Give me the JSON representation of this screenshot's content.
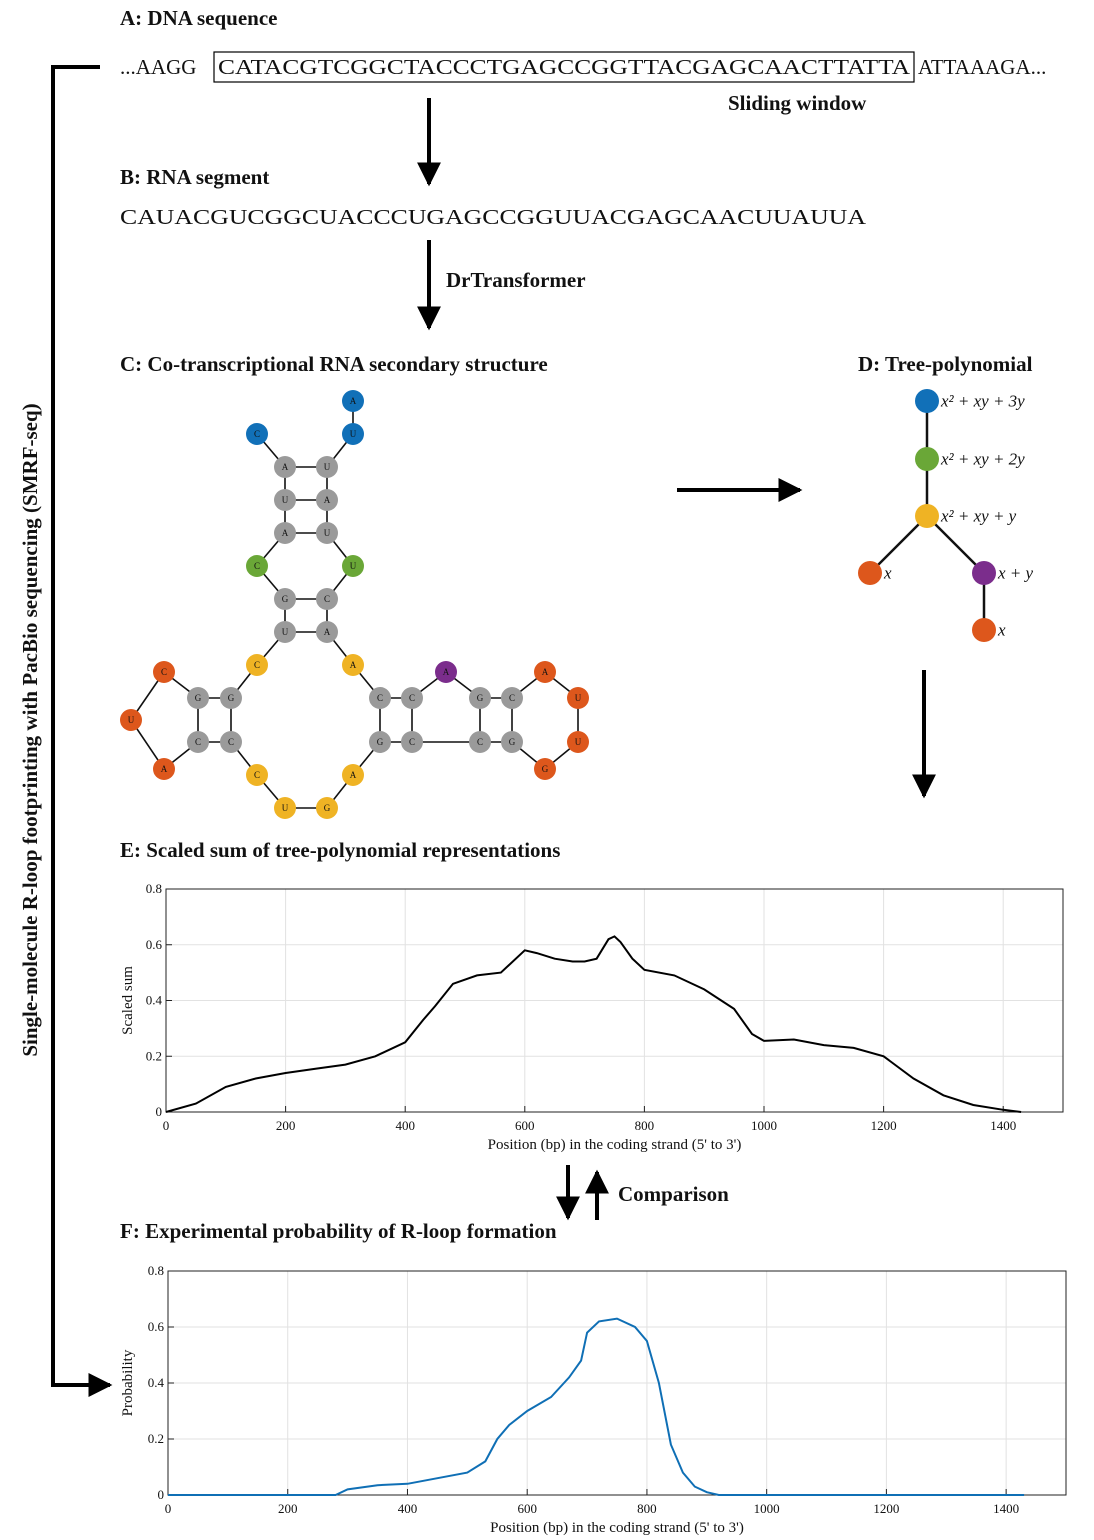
{
  "panel_a": {
    "title": "A: DNA sequence",
    "prefix": "...AAGG",
    "window": "CATACGTCGGCTACCCTGAGCCGGTTACGAGCAACTTATTA",
    "suffix": "ATTAAAGA...",
    "window_label": "Sliding window"
  },
  "panel_b": {
    "title": "B: RNA segment",
    "sequence": "CAUACGUCGGCUACCCUGAGCCGGUUACGAGCAACUUAUUA"
  },
  "tool_label": "DrTransformer",
  "panel_c": {
    "title": "C: Co-transcriptional RNA secondary structure",
    "nodes": [
      {
        "label": "C",
        "color": "#1170b8"
      },
      {
        "label": "A",
        "color": "#1170b8"
      },
      {
        "label": "U",
        "color": "#1170b8"
      },
      {
        "label": "A",
        "color": "#9a9a9a"
      },
      {
        "label": "U",
        "color": "#9a9a9a"
      },
      {
        "label": "U",
        "color": "#9a9a9a"
      },
      {
        "label": "A",
        "color": "#9a9a9a"
      },
      {
        "label": "A",
        "color": "#9a9a9a"
      },
      {
        "label": "U",
        "color": "#9a9a9a"
      },
      {
        "label": "C",
        "color": "#6aa737"
      },
      {
        "label": "U",
        "color": "#6aa737"
      },
      {
        "label": "G",
        "color": "#9a9a9a"
      },
      {
        "label": "C",
        "color": "#9a9a9a"
      },
      {
        "label": "U",
        "color": "#9a9a9a"
      },
      {
        "label": "A",
        "color": "#9a9a9a"
      },
      {
        "label": "C",
        "color": "#efb324"
      },
      {
        "label": "A",
        "color": "#efb324"
      },
      {
        "label": "G",
        "color": "#9a9a9a"
      },
      {
        "label": "G",
        "color": "#9a9a9a"
      },
      {
        "label": "C",
        "color": "#9a9a9a"
      },
      {
        "label": "C",
        "color": "#9a9a9a"
      },
      {
        "label": "C",
        "color": "#dd571c"
      },
      {
        "label": "U",
        "color": "#dd571c"
      },
      {
        "label": "A",
        "color": "#dd571c"
      },
      {
        "label": "C",
        "color": "#efb324"
      },
      {
        "label": "U",
        "color": "#efb324"
      },
      {
        "label": "G",
        "color": "#efb324"
      },
      {
        "label": "A",
        "color": "#efb324"
      },
      {
        "label": "C",
        "color": "#9a9a9a"
      },
      {
        "label": "C",
        "color": "#9a9a9a"
      },
      {
        "label": "G",
        "color": "#9a9a9a"
      },
      {
        "label": "C",
        "color": "#9a9a9a"
      },
      {
        "label": "G",
        "color": "#9a9a9a"
      },
      {
        "label": "C",
        "color": "#9a9a9a"
      },
      {
        "label": "C",
        "color": "#9a9a9a"
      },
      {
        "label": "G",
        "color": "#9a9a9a"
      },
      {
        "label": "A",
        "color": "#7b2d8c"
      },
      {
        "label": "A",
        "color": "#dd571c"
      },
      {
        "label": "U",
        "color": "#dd571c"
      },
      {
        "label": "U",
        "color": "#dd571c"
      },
      {
        "label": "G",
        "color": "#dd571c"
      }
    ]
  },
  "panel_d": {
    "title": "D: Tree-polynomial",
    "nodes": [
      {
        "label": "x² + xy + 3y",
        "color": "#1170b8"
      },
      {
        "label": "x² + xy + 2y",
        "color": "#6aa737"
      },
      {
        "label": "x² + xy + y",
        "color": "#efb324"
      },
      {
        "label": "x",
        "color": "#dd571c"
      },
      {
        "label": "x + y",
        "color": "#7b2d8c"
      },
      {
        "label": "x",
        "color": "#dd571c"
      }
    ]
  },
  "comparison_label": "Comparison",
  "side_label": "Single-molecule R-loop footprinting with PacBio sequencing (SMRF-seq)",
  "chart_data": [
    {
      "type": "line",
      "title": "E: Scaled sum of tree-polynomial representations",
      "ylabel": "Scaled sum",
      "xlabel": "Position (bp) in the coding strand (5' to 3')",
      "xlim": [
        0,
        1500
      ],
      "ylim": [
        0,
        0.8
      ],
      "xticks": [
        0,
        200,
        400,
        600,
        800,
        1000,
        1200,
        1400
      ],
      "yticks": [
        0,
        0.2,
        0.4,
        0.6,
        0.8
      ],
      "grid": true,
      "color": "#000000",
      "x": [
        0,
        50,
        100,
        150,
        200,
        250,
        300,
        350,
        400,
        430,
        450,
        480,
        520,
        560,
        600,
        620,
        650,
        680,
        700,
        720,
        740,
        750,
        760,
        780,
        800,
        850,
        900,
        950,
        980,
        1000,
        1050,
        1100,
        1150,
        1200,
        1250,
        1300,
        1350,
        1400,
        1430
      ],
      "values": [
        0,
        0.03,
        0.09,
        0.12,
        0.14,
        0.155,
        0.17,
        0.2,
        0.25,
        0.33,
        0.38,
        0.46,
        0.49,
        0.5,
        0.58,
        0.57,
        0.55,
        0.54,
        0.54,
        0.55,
        0.62,
        0.63,
        0.61,
        0.55,
        0.51,
        0.49,
        0.44,
        0.37,
        0.28,
        0.255,
        0.26,
        0.24,
        0.23,
        0.2,
        0.12,
        0.06,
        0.025,
        0.008,
        0
      ]
    },
    {
      "type": "line",
      "title": "F: Experimental probability of R-loop formation",
      "ylabel": "Probability",
      "xlabel": "Position (bp) in the coding strand (5' to 3')",
      "xlim": [
        0,
        1500
      ],
      "ylim": [
        0,
        0.8
      ],
      "xticks": [
        0,
        200,
        400,
        600,
        800,
        1000,
        1200,
        1400
      ],
      "yticks": [
        0,
        0.2,
        0.4,
        0.6,
        0.8
      ],
      "grid": true,
      "color": "#0f6fb5",
      "x": [
        0,
        280,
        300,
        350,
        400,
        450,
        500,
        530,
        550,
        570,
        600,
        640,
        670,
        690,
        700,
        720,
        750,
        780,
        800,
        820,
        840,
        860,
        880,
        900,
        920,
        1430
      ],
      "values": [
        0,
        0,
        0.02,
        0.035,
        0.04,
        0.06,
        0.08,
        0.12,
        0.2,
        0.25,
        0.3,
        0.35,
        0.42,
        0.48,
        0.58,
        0.62,
        0.63,
        0.6,
        0.55,
        0.4,
        0.18,
        0.08,
        0.03,
        0.01,
        0,
        0
      ]
    }
  ]
}
